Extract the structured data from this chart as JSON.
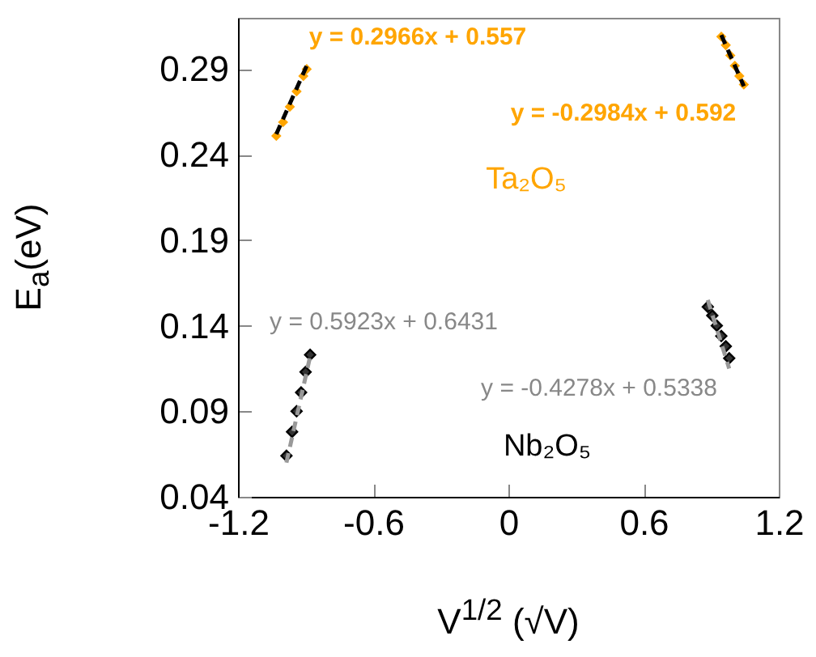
{
  "chart_data": {
    "type": "scatter",
    "xlabel": "V$^{1/2}$ (√V)",
    "ylabel": "E$_{a}$(eV)",
    "xlim": [
      -1.2,
      1.2
    ],
    "xticks": [
      -1.2,
      -0.6,
      {
        "value": 0,
        "label": "0"
      },
      0.6,
      1.2
    ],
    "ylim": [
      0.04,
      0.32
    ],
    "yticks": [
      0.04,
      0.09,
      0.14,
      0.19,
      0.24,
      0.29
    ],
    "grid": false,
    "series": [
      {
        "marker": "diamond",
        "color": "#ffa500",
        "x": [
          -1.03,
          -1.0,
          -0.97,
          -0.94,
          -0.91,
          -0.895,
          0.945,
          0.965,
          0.985,
          1.005,
          1.025,
          1.045
        ],
        "values": [
          0.251,
          0.259,
          0.268,
          0.277,
          0.286,
          0.29,
          0.309,
          0.304,
          0.298,
          0.292,
          0.286,
          0.281
        ]
      },
      {
        "marker": "diamond",
        "color": "#333333",
        "x": [
          -0.985,
          -0.96,
          -0.94,
          -0.92,
          -0.9,
          -0.88,
          0.885,
          0.905,
          0.925,
          0.945,
          0.965,
          0.98
        ],
        "values": [
          0.064,
          0.078,
          0.09,
          0.101,
          0.113,
          0.123,
          0.151,
          0.146,
          0.14,
          0.134,
          0.128,
          0.121
        ]
      },
      {
        "type": "line",
        "line_style": "dashed",
        "color": "#000000",
        "x": [
          -1.03,
          -0.895
        ],
        "values": [
          0.252,
          0.292
        ]
      },
      {
        "type": "line",
        "line_style": "dashed",
        "color": "#000000",
        "x": [
          0.945,
          1.045
        ],
        "values": [
          0.31,
          0.28
        ]
      },
      {
        "type": "line",
        "line_style": "dashed",
        "color": "#999999",
        "x": [
          -0.985,
          -0.88
        ],
        "values": [
          0.06,
          0.122
        ]
      },
      {
        "type": "line",
        "line_style": "dashed",
        "color": "#999999",
        "x": [
          0.885,
          0.98
        ],
        "values": [
          0.155,
          0.115
        ]
      }
    ],
    "annotations": [
      "y = 0.2966x + 0.557",
      "y = -0.2984x + 0.592",
      "Ta₂O₅",
      "y = 0.5923x + 0.6431",
      "y = -0.4278x + 0.5338",
      "Nb₂O₅"
    ]
  }
}
